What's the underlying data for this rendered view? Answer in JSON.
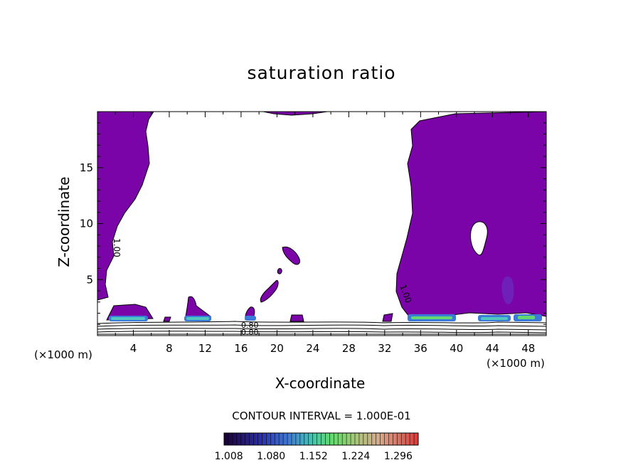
{
  "chart_data": {
    "type": "heatmap",
    "title": "saturation ratio",
    "xlabel": "X-coordinate",
    "ylabel": "Z-coordinate",
    "x_unit_left": "(×1000 m)",
    "x_unit_right": "(×1000 m)",
    "xlim": [
      0,
      50
    ],
    "ylim": [
      0,
      20
    ],
    "xticks": [
      "4",
      "8",
      "12",
      "16",
      "20",
      "24",
      "28",
      "32",
      "36",
      "40",
      "44",
      "48"
    ],
    "yticks": [
      "5",
      "10",
      "15"
    ],
    "contour_interval_text": "CONTOUR INTERVAL = 1.000E-01",
    "contour_labels": [
      "1.00",
      "1.00",
      "0.80",
      "0.80"
    ],
    "colorbar_ticks": [
      "1.008",
      "1.080",
      "1.152",
      "1.224",
      "1.296"
    ],
    "colorbar_range": [
      1.0,
      1.33
    ],
    "dominant_color": "#7B04A8",
    "colormap": [
      "#1a0033",
      "#2b1a9a",
      "#3a55d8",
      "#40b0c8",
      "#55d890",
      "#70e060",
      "#b0d070",
      "#d8b878",
      "#e08080",
      "#e04040"
    ]
  }
}
